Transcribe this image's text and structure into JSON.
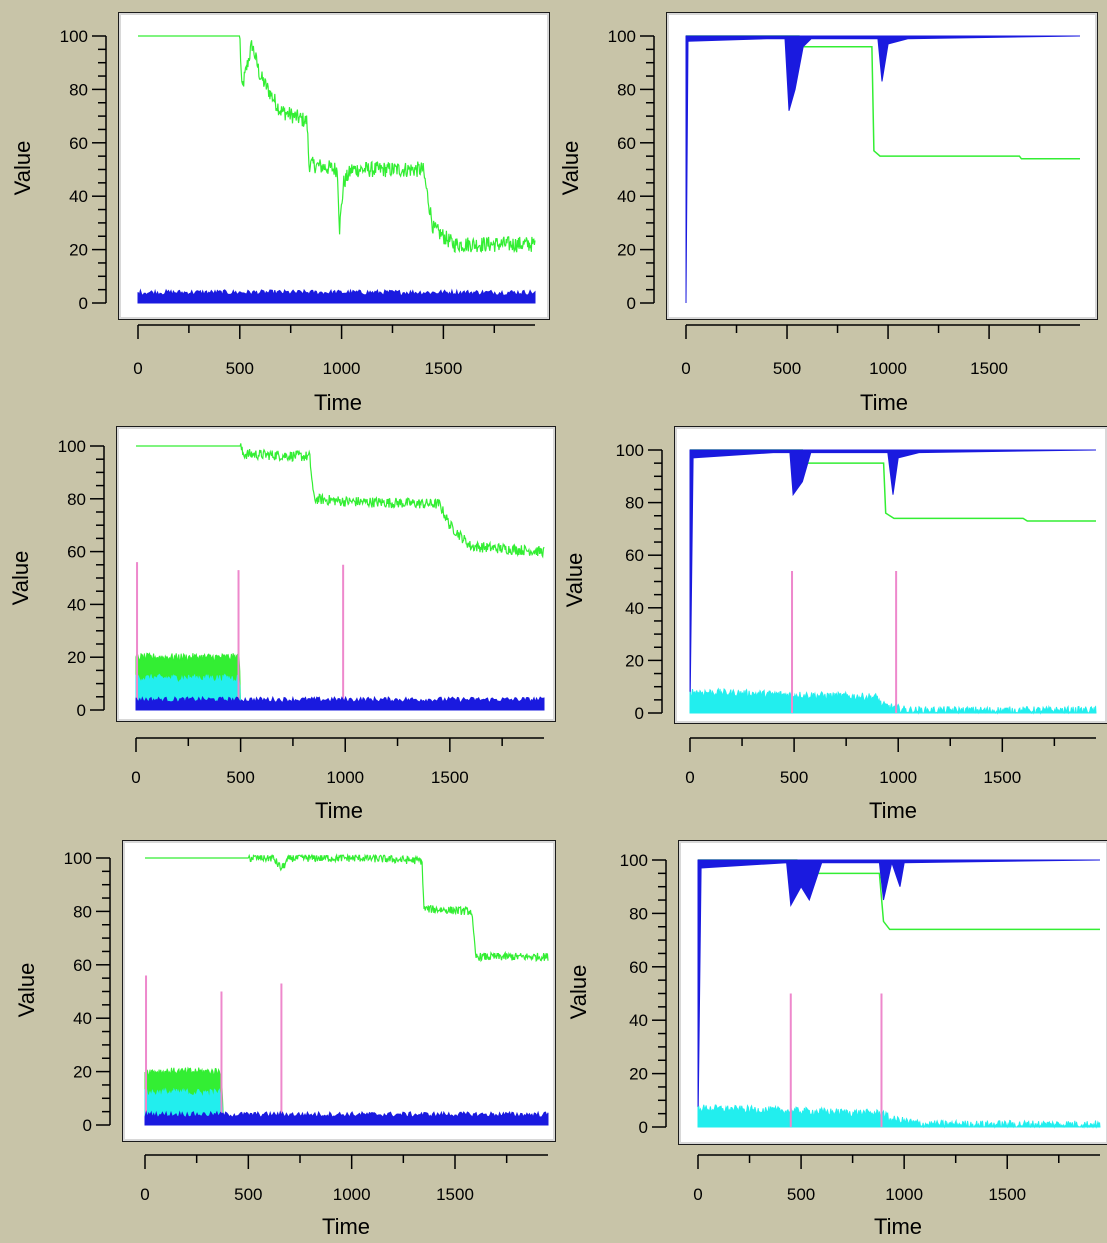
{
  "chart_data": [
    {
      "type": "line",
      "xlabel": "Time",
      "ylabel": "Value",
      "xlim": [
        0,
        1950
      ],
      "ylim": [
        0,
        100
      ],
      "xticks": [
        0,
        500,
        1000,
        1500
      ],
      "yticks": [
        0,
        20,
        40,
        60,
        80,
        100
      ],
      "series": [
        {
          "color": "#33ee33",
          "style": "noisy",
          "noise": 3,
          "points": [
            [
              0,
              100
            ],
            [
              500,
              100
            ],
            [
              510,
              80
            ],
            [
              560,
              97
            ],
            [
              600,
              85
            ],
            [
              700,
              72
            ],
            [
              830,
              68
            ],
            [
              840,
              52
            ],
            [
              980,
              50
            ],
            [
              990,
              28
            ],
            [
              1010,
              45
            ],
            [
              1050,
              50
            ],
            [
              1400,
              50
            ],
            [
              1450,
              28
            ],
            [
              1550,
              22
            ],
            [
              1950,
              22
            ]
          ]
        },
        {
          "color": "#1a1adf",
          "style": "band",
          "base": 0,
          "top": 3.5
        }
      ]
    },
    {
      "type": "line",
      "xlabel": "Time",
      "ylabel": "Value",
      "xlim": [
        0,
        1950
      ],
      "ylim": [
        0,
        100
      ],
      "xticks": [
        0,
        500,
        1000,
        1500
      ],
      "yticks": [
        0,
        20,
        40,
        60,
        80,
        100
      ],
      "series": [
        {
          "color": "#33ee33",
          "style": "line",
          "points": [
            [
              0,
              100
            ],
            [
              560,
              100
            ],
            [
              580,
              96
            ],
            [
              920,
              96
            ],
            [
              930,
              57
            ],
            [
              960,
              55
            ],
            [
              1650,
              55
            ],
            [
              1660,
              54
            ],
            [
              1950,
              54
            ]
          ]
        },
        {
          "color": "#1a1adf",
          "style": "band",
          "points": [
            [
              0,
              0
            ],
            [
              10,
              98
            ],
            [
              400,
              99
            ],
            [
              490,
              99
            ],
            [
              510,
              72
            ],
            [
              540,
              80
            ],
            [
              580,
              96
            ],
            [
              620,
              99
            ],
            [
              950,
              99
            ],
            [
              970,
              83
            ],
            [
              1000,
              97
            ],
            [
              1100,
              99
            ],
            [
              1950,
              100
            ]
          ],
          "upper": 100
        }
      ]
    },
    {
      "type": "line",
      "xlabel": "Time",
      "ylabel": "Value",
      "xlim": [
        0,
        1950
      ],
      "ylim": [
        0,
        100
      ],
      "xticks": [
        0,
        500,
        1000,
        1500
      ],
      "yticks": [
        0,
        20,
        40,
        60,
        80,
        100
      ],
      "series": [
        {
          "color": "#33ee33",
          "style": "noisy",
          "noise": 2,
          "points": [
            [
              0,
              100
            ],
            [
              500,
              100
            ],
            [
              510,
              97
            ],
            [
              830,
              96
            ],
            [
              850,
              80
            ],
            [
              1000,
              79
            ],
            [
              1450,
              78
            ],
            [
              1500,
              70
            ],
            [
              1600,
              62
            ],
            [
              1950,
              60
            ]
          ]
        },
        {
          "color": "#33ee33",
          "style": "band",
          "points": [
            [
              0,
              20
            ],
            [
              495,
              20
            ],
            [
              500,
              0
            ]
          ],
          "base": 0
        },
        {
          "color": "#22eeee",
          "style": "band",
          "points": [
            [
              0,
              12
            ],
            [
              495,
              12
            ],
            [
              500,
              0
            ]
          ],
          "base": 0
        },
        {
          "color": "#ee88cc",
          "style": "spikes",
          "points": [
            [
              5,
              56
            ],
            [
              490,
              53
            ],
            [
              990,
              55
            ]
          ]
        },
        {
          "color": "#1a1adf",
          "style": "band",
          "base": 0,
          "top": 3.5
        }
      ]
    },
    {
      "type": "line",
      "xlabel": "Time",
      "ylabel": "Value",
      "xlim": [
        0,
        1950
      ],
      "ylim": [
        0,
        100
      ],
      "xticks": [
        0,
        500,
        1000,
        1500
      ],
      "yticks": [
        0,
        20,
        40,
        60,
        80,
        100
      ],
      "series": [
        {
          "color": "#33ee33",
          "style": "line",
          "points": [
            [
              0,
              100
            ],
            [
              540,
              100
            ],
            [
              560,
              95
            ],
            [
              930,
              95
            ],
            [
              940,
              76
            ],
            [
              980,
              74
            ],
            [
              1600,
              74
            ],
            [
              1620,
              73
            ],
            [
              1950,
              73
            ]
          ]
        },
        {
          "color": "#1a1adf",
          "style": "band",
          "points": [
            [
              0,
              0
            ],
            [
              15,
              97
            ],
            [
              400,
              99
            ],
            [
              480,
              99
            ],
            [
              495,
              83
            ],
            [
              540,
              88
            ],
            [
              580,
              99
            ],
            [
              950,
              99
            ],
            [
              975,
              83
            ],
            [
              1000,
              97
            ],
            [
              1100,
              99
            ],
            [
              1950,
              100
            ]
          ],
          "upper": 100
        },
        {
          "color": "#22eeee",
          "style": "band",
          "points": [
            [
              0,
              8
            ],
            [
              900,
              6
            ],
            [
              920,
              3
            ],
            [
              1050,
              1
            ],
            [
              1950,
              1
            ]
          ],
          "base": 0
        },
        {
          "color": "#ee88cc",
          "style": "spikes",
          "points": [
            [
              490,
              54
            ],
            [
              990,
              54
            ]
          ]
        }
      ]
    },
    {
      "type": "line",
      "xlabel": "Time",
      "ylabel": "Value",
      "xlim": [
        0,
        1950
      ],
      "ylim": [
        0,
        100
      ],
      "xticks": [
        0,
        500,
        1000,
        1500
      ],
      "yticks": [
        0,
        20,
        40,
        60,
        80,
        100
      ],
      "series": [
        {
          "color": "#33ee33",
          "style": "noisy",
          "noise": 1.5,
          "points": [
            [
              0,
              100
            ],
            [
              620,
              100
            ],
            [
              660,
              96
            ],
            [
              700,
              100
            ],
            [
              1050,
              100
            ],
            [
              1340,
              99
            ],
            [
              1350,
              81
            ],
            [
              1580,
              80
            ],
            [
              1600,
              63
            ],
            [
              1950,
              63
            ]
          ]
        },
        {
          "color": "#33ee33",
          "style": "band",
          "points": [
            [
              0,
              20
            ],
            [
              370,
              20
            ],
            [
              380,
              0
            ]
          ],
          "base": 0
        },
        {
          "color": "#22eeee",
          "style": "band",
          "points": [
            [
              0,
              12
            ],
            [
              370,
              12
            ],
            [
              380,
              0
            ]
          ],
          "base": 0
        },
        {
          "color": "#ee88cc",
          "style": "spikes",
          "points": [
            [
              5,
              56
            ],
            [
              370,
              50
            ],
            [
              660,
              53
            ]
          ]
        },
        {
          "color": "#1a1adf",
          "style": "band",
          "base": 0,
          "top": 3.5
        }
      ]
    },
    {
      "type": "line",
      "xlabel": "Time",
      "ylabel": "Value",
      "xlim": [
        0,
        1950
      ],
      "ylim": [
        0,
        100
      ],
      "xticks": [
        0,
        500,
        1000,
        1500
      ],
      "yticks": [
        0,
        20,
        40,
        60,
        80,
        100
      ],
      "series": [
        {
          "color": "#33ee33",
          "style": "line",
          "points": [
            [
              0,
              100
            ],
            [
              480,
              100
            ],
            [
              520,
              95
            ],
            [
              880,
              95
            ],
            [
              900,
              77
            ],
            [
              930,
              74
            ],
            [
              1950,
              74
            ]
          ]
        },
        {
          "color": "#1a1adf",
          "style": "band",
          "points": [
            [
              0,
              0
            ],
            [
              15,
              97
            ],
            [
              430,
              99
            ],
            [
              450,
              83
            ],
            [
              500,
              90
            ],
            [
              540,
              85
            ],
            [
              600,
              99
            ],
            [
              880,
              99
            ],
            [
              900,
              85
            ],
            [
              940,
              99
            ],
            [
              980,
              90
            ],
            [
              1000,
              99
            ],
            [
              1950,
              100
            ]
          ],
          "upper": 100
        },
        {
          "color": "#22eeee",
          "style": "band",
          "points": [
            [
              0,
              7
            ],
            [
              900,
              5
            ],
            [
              930,
              3
            ],
            [
              1100,
              1
            ],
            [
              1950,
              1
            ]
          ],
          "base": 0
        },
        {
          "color": "#ee88cc",
          "style": "spikes",
          "points": [
            [
              450,
              50
            ],
            [
              890,
              50
            ]
          ]
        }
      ]
    }
  ]
}
